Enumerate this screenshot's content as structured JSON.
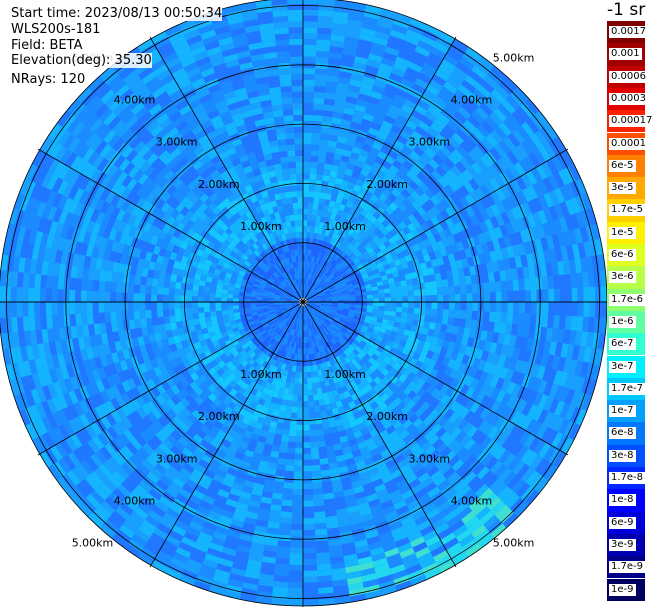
{
  "header": {
    "start_time": "Start time: 2023/08/13 00:50:34",
    "instrument": "WLS200s-181",
    "field": "Field: BETA",
    "elevation": "Elevation(deg): 35.30",
    "nrays": "NRays: 120"
  },
  "colorbar": {
    "unit": "-1 sr",
    "labels": [
      "0.0017",
      "0.001",
      "0.0006",
      "0.0003",
      "0.00017",
      "0.0001",
      "6e-5",
      "3e-5",
      "1.7e-5",
      "1e-5",
      "6e-6",
      "3e-6",
      "1.7e-6",
      "1e-6",
      "6e-7",
      "3e-7",
      "1.7e-7",
      "1e-7",
      "6e-8",
      "3e-8",
      "1.7e-8",
      "1e-8",
      "6e-9",
      "3e-9",
      "1.7e-9",
      "1e-9"
    ],
    "colors": [
      "#800000",
      "#a00000",
      "#c00000",
      "#e00000",
      "#ff2000",
      "#ff5000",
      "#ff8000",
      "#ffa800",
      "#ffd000",
      "#fff000",
      "#e0ff20",
      "#b8ff48",
      "#90ff70",
      "#60ff a0",
      "#30ffd0",
      "#00f0ff",
      "#00c8ff",
      "#00a0ff",
      "#0078ff",
      "#0050ff",
      "#0028ff",
      "#0000ff",
      "#0000d8",
      "#0000b0",
      "#000088",
      "#000060"
    ]
  },
  "chart_data": {
    "type": "heatmap",
    "projection": "polar (PPI)",
    "field": "BETA",
    "elevation_deg": 35.3,
    "n_rays": 120,
    "range_ring_labels_km": [
      "1.00km",
      "2.00km",
      "3.00km",
      "4.00km",
      "5.00km"
    ],
    "range_rings_km": [
      1,
      2,
      3,
      4,
      5
    ],
    "spokes_deg": [
      0,
      30,
      60,
      90,
      120,
      150,
      180,
      210,
      240,
      270,
      300,
      330
    ],
    "dominant_value_range": [
      "1e-8",
      "1.7e-7"
    ],
    "colorscale": "log, 1e-9 to 0.0017 sr-1"
  }
}
